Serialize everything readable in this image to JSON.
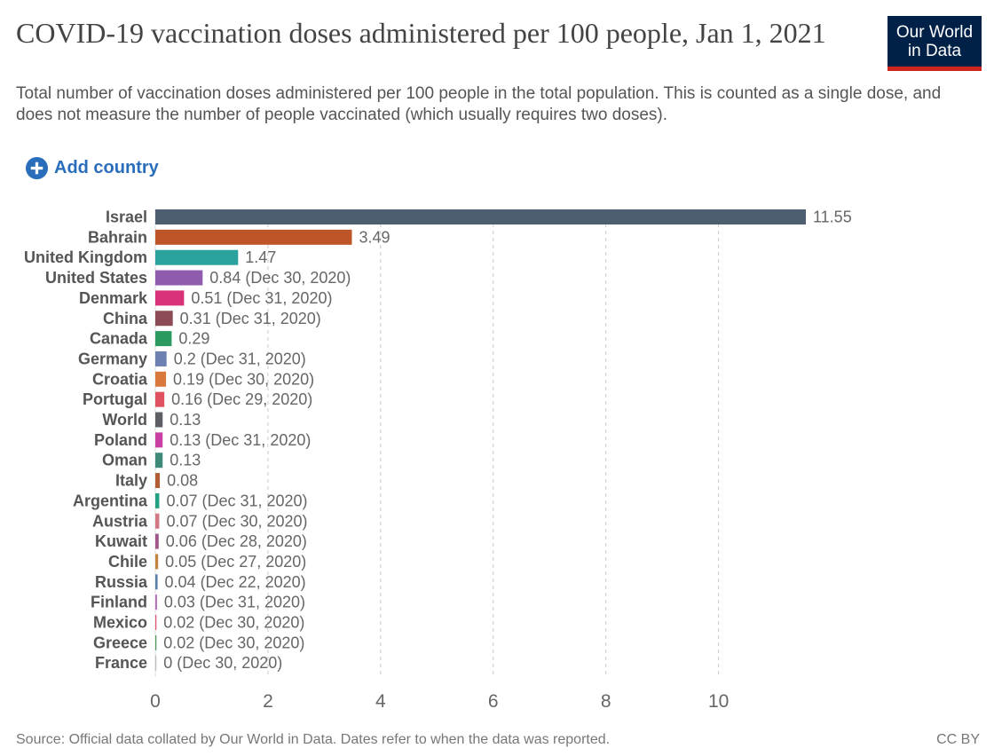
{
  "header": {
    "title": "COVID-19 vaccination doses administered per 100 people, Jan 1, 2021",
    "subtitle": "Total number of vaccination doses administered per 100 people in the total population. This is counted as a single dose, and does not measure the number of people vaccinated (which usually requires two doses).",
    "logo_line1": "Our World",
    "logo_line2": "in Data"
  },
  "controls": {
    "add_country_label": "Add country",
    "accent_color": "#2a6ebb"
  },
  "footer": {
    "source": "Source: Official data collated by Our World in Data. Dates refer to when the data was reported.",
    "license": "CC BY"
  },
  "chart_data": {
    "type": "bar",
    "orientation": "horizontal",
    "title": "COVID-19 vaccination doses administered per 100 people, Jan 1, 2021",
    "xlabel": "",
    "ylabel": "",
    "xlim": [
      0,
      11.55
    ],
    "xticks": [
      0,
      2,
      4,
      6,
      8,
      10
    ],
    "grid": "vertical dashed",
    "categories": [
      "Israel",
      "Bahrain",
      "United Kingdom",
      "United States",
      "Denmark",
      "China",
      "Canada",
      "Germany",
      "Croatia",
      "Portugal",
      "World",
      "Poland",
      "Oman",
      "Italy",
      "Argentina",
      "Austria",
      "Kuwait",
      "Chile",
      "Russia",
      "Finland",
      "Mexico",
      "Greece",
      "France"
    ],
    "values": [
      11.55,
      3.49,
      1.47,
      0.84,
      0.51,
      0.31,
      0.29,
      0.2,
      0.19,
      0.16,
      0.13,
      0.13,
      0.13,
      0.08,
      0.07,
      0.07,
      0.06,
      0.05,
      0.04,
      0.03,
      0.02,
      0.02,
      0
    ],
    "value_labels": [
      "11.55",
      "3.49",
      "1.47",
      "0.84 (Dec 30, 2020)",
      "0.51 (Dec 31, 2020)",
      "0.31 (Dec 31, 2020)",
      "0.29",
      "0.2 (Dec 31, 2020)",
      "0.19 (Dec 30, 2020)",
      "0.16 (Dec 29, 2020)",
      "0.13",
      "0.13 (Dec 31, 2020)",
      "0.13",
      "0.08",
      "0.07 (Dec 31, 2020)",
      "0.07 (Dec 30, 2020)",
      "0.06 (Dec 28, 2020)",
      "0.05 (Dec 27, 2020)",
      "0.04 (Dec 22, 2020)",
      "0.03 (Dec 31, 2020)",
      "0.02 (Dec 30, 2020)",
      "0.02 (Dec 30, 2020)",
      "0 (Dec 30, 2020)"
    ],
    "colors": [
      "#4d5e71",
      "#be5528",
      "#29a19c",
      "#8e5bad",
      "#d9327b",
      "#8c4a54",
      "#2b9a61",
      "#6c80b1",
      "#d9783b",
      "#e0515f",
      "#5c5f66",
      "#c93fa5",
      "#3d8a7a",
      "#b35d33",
      "#22a083",
      "#d37883",
      "#a3558a",
      "#c4823f",
      "#577fa8",
      "#b56ab9",
      "#e0576f",
      "#4e9a59",
      "#bbbbbb"
    ]
  }
}
